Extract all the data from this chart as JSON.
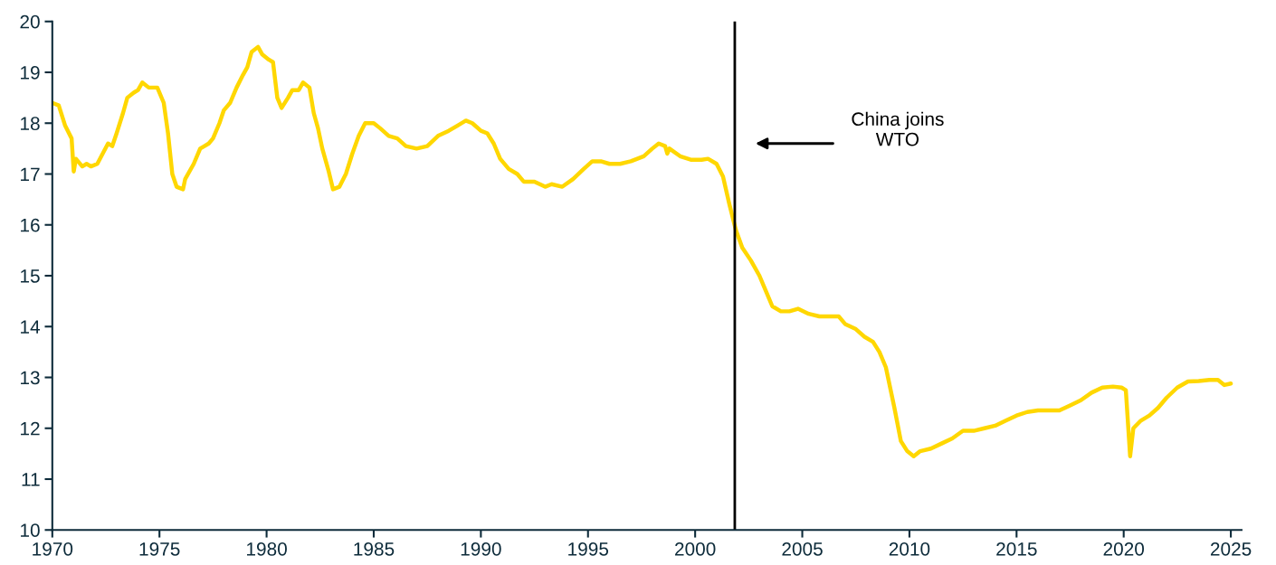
{
  "chart_data": {
    "type": "line",
    "x": [
      1970.0,
      1970.3,
      1970.6,
      1970.9,
      1971.0,
      1971.1,
      1971.4,
      1971.6,
      1971.8,
      1972.1,
      1972.6,
      1972.8,
      1973.0,
      1973.3,
      1973.5,
      1973.8,
      1974.0,
      1974.2,
      1974.5,
      1974.9,
      1975.2,
      1975.4,
      1975.6,
      1975.8,
      1976.1,
      1976.2,
      1976.6,
      1976.9,
      1977.1,
      1977.3,
      1977.5,
      1977.8,
      1978.0,
      1978.3,
      1978.6,
      1978.9,
      1979.1,
      1979.3,
      1979.6,
      1979.8,
      1980.1,
      1980.3,
      1980.5,
      1980.7,
      1981.0,
      1981.2,
      1981.5,
      1981.7,
      1982.0,
      1982.2,
      1982.4,
      1982.6,
      1982.9,
      1983.1,
      1983.4,
      1983.7,
      1984.0,
      1984.3,
      1984.6,
      1985.0,
      1985.3,
      1985.7,
      1986.1,
      1986.5,
      1987.0,
      1987.5,
      1988.0,
      1988.5,
      1988.9,
      1989.3,
      1989.6,
      1990.0,
      1990.3,
      1990.6,
      1990.9,
      1991.3,
      1991.7,
      1992.0,
      1992.5,
      1993.0,
      1993.3,
      1993.8,
      1994.3,
      1994.8,
      1995.2,
      1995.6,
      1996.0,
      1996.5,
      1997.0,
      1997.6,
      1998.0,
      1998.3,
      1998.6,
      1998.7,
      1998.8,
      1999.3,
      1999.8,
      2000.3,
      2000.6,
      2001.0,
      2001.3,
      2001.6,
      2001.9,
      2002.2,
      2002.6,
      2003.0,
      2003.3,
      2003.6,
      2004.0,
      2004.4,
      2004.8,
      2005.3,
      2005.8,
      2006.3,
      2006.7,
      2007.0,
      2007.5,
      2007.9,
      2008.3,
      2008.6,
      2008.9,
      2009.1,
      2009.3,
      2009.6,
      2009.9,
      2010.2,
      2010.5,
      2011.0,
      2011.5,
      2012.0,
      2012.5,
      2013.0,
      2013.5,
      2014.0,
      2014.5,
      2015.0,
      2015.5,
      2016.0,
      2016.5,
      2017.0,
      2017.5,
      2018.0,
      2018.5,
      2019.0,
      2019.5,
      2019.9,
      2020.1,
      2020.3,
      2020.45,
      2020.8,
      2021.2,
      2021.6,
      2022.0,
      2022.5,
      2023.0,
      2023.5,
      2024.0,
      2024.4,
      2024.7,
      2025.0
    ],
    "series": [
      {
        "color": "#ffd700",
        "values": [
          18.4,
          18.35,
          17.95,
          17.7,
          17.05,
          17.3,
          17.15,
          17.2,
          17.15,
          17.2,
          17.6,
          17.55,
          17.8,
          18.2,
          18.5,
          18.6,
          18.65,
          18.8,
          18.7,
          18.7,
          18.4,
          17.8,
          17.0,
          16.75,
          16.7,
          16.9,
          17.2,
          17.5,
          17.55,
          17.6,
          17.7,
          18.0,
          18.25,
          18.4,
          18.7,
          18.95,
          19.1,
          19.4,
          19.5,
          19.35,
          19.25,
          19.2,
          18.5,
          18.3,
          18.5,
          18.65,
          18.65,
          18.8,
          18.7,
          18.2,
          17.9,
          17.5,
          17.05,
          16.7,
          16.75,
          17.0,
          17.4,
          17.75,
          18.0,
          18.0,
          17.9,
          17.75,
          17.7,
          17.55,
          17.5,
          17.55,
          17.75,
          17.85,
          17.95,
          18.05,
          18.0,
          17.85,
          17.8,
          17.6,
          17.3,
          17.1,
          17.0,
          16.85,
          16.85,
          16.75,
          16.8,
          16.75,
          16.9,
          17.1,
          17.25,
          17.25,
          17.2,
          17.2,
          17.25,
          17.35,
          17.5,
          17.6,
          17.55,
          17.4,
          17.5,
          17.35,
          17.28,
          17.28,
          17.3,
          17.2,
          16.95,
          16.4,
          15.9,
          15.55,
          15.3,
          15.0,
          14.7,
          14.4,
          14.3,
          14.3,
          14.35,
          14.25,
          14.2,
          14.2,
          14.2,
          14.05,
          13.95,
          13.8,
          13.7,
          13.5,
          13.2,
          12.8,
          12.4,
          11.75,
          11.55,
          11.45,
          11.55,
          11.6,
          11.7,
          11.8,
          11.95,
          11.95,
          12.0,
          12.05,
          12.15,
          12.25,
          12.32,
          12.35,
          12.35,
          12.35,
          12.45,
          12.55,
          12.7,
          12.8,
          12.82,
          12.8,
          12.75,
          11.45,
          12.0,
          12.15,
          12.25,
          12.4,
          12.6,
          12.8,
          12.92,
          12.93,
          12.95,
          12.95,
          12.85,
          12.88
        ]
      }
    ],
    "xlim": [
      1970,
      2025.5
    ],
    "xticks": [
      1970,
      1975,
      1980,
      1985,
      1990,
      1995,
      2000,
      2005,
      2010,
      2015,
      2020,
      2025
    ],
    "ylim": [
      10,
      20
    ],
    "yticks": [
      10,
      11,
      12,
      13,
      14,
      15,
      16,
      17,
      18,
      19,
      20
    ],
    "grid": false,
    "legend": false,
    "marker": "none",
    "line_style": "solid",
    "ref_lines": [
      {
        "axis": "x",
        "value": 2001.85,
        "color": "#000000",
        "line_style": "solid",
        "label": "China joins\nWTO"
      }
    ]
  }
}
